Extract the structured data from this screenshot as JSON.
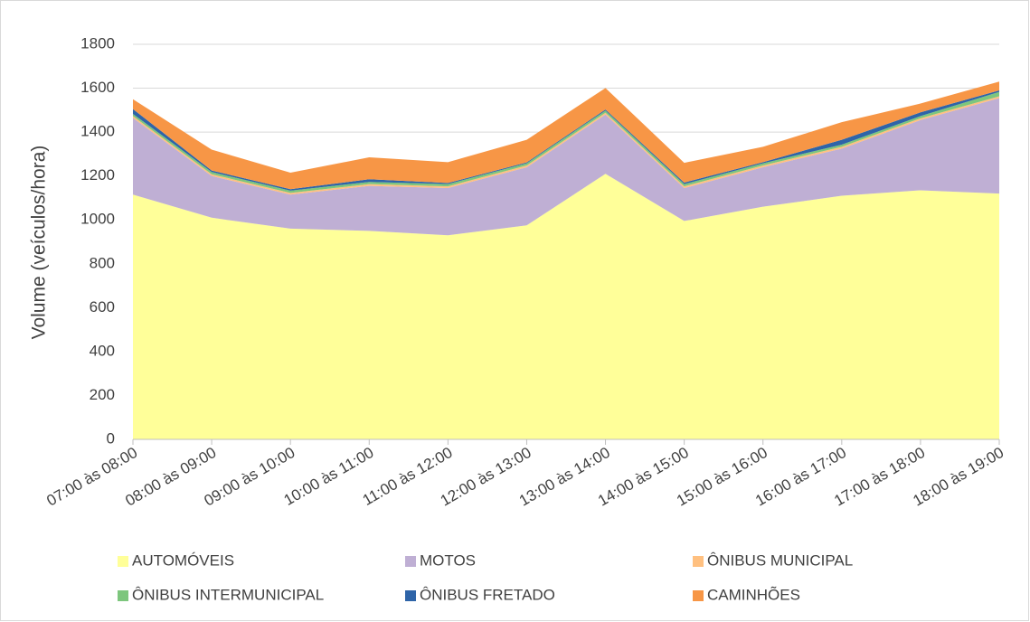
{
  "chart_data": {
    "type": "stacked_area",
    "ylabel": "Volume (veículos/hora)",
    "categories": [
      "07:00 às 08:00",
      "08:00 às 09:00",
      "09:00 às 10:00",
      "10:00 às 11:00",
      "11:00 às 12:00",
      "12:00 às 13:00",
      "13:00 às 14:00",
      "14:00 às 15:00",
      "15:00 às 16:00",
      "16:00 às 17:00",
      "17:00 às 18:00",
      "18:00 às 19:00"
    ],
    "series": [
      {
        "name": "AUTOMÓVEIS",
        "color": "#ffff99",
        "values": [
          1115,
          1010,
          960,
          950,
          930,
          975,
          1210,
          995,
          1060,
          1110,
          1135,
          1120
        ]
      },
      {
        "name": "MOTOS",
        "color": "#bfafd4",
        "values": [
          350,
          190,
          155,
          205,
          215,
          265,
          270,
          150,
          180,
          215,
          320,
          435
        ]
      },
      {
        "name": "ÔNIBUS MUNICIPAL",
        "color": "#ffc080",
        "values": [
          8,
          8,
          8,
          8,
          8,
          8,
          8,
          8,
          8,
          8,
          8,
          8
        ]
      },
      {
        "name": "ÔNIBUS INTERMUNICIPAL",
        "color": "#7dc67d",
        "values": [
          10,
          10,
          10,
          10,
          10,
          10,
          10,
          10,
          10,
          10,
          10,
          20
        ]
      },
      {
        "name": "ÔNIBUS FRETADO",
        "color": "#2e64a8",
        "values": [
          22,
          7,
          7,
          12,
          5,
          4,
          5,
          7,
          5,
          22,
          17,
          7
        ]
      },
      {
        "name": "CAMINHÕES",
        "color": "#f79646",
        "values": [
          45,
          95,
          75,
          100,
          95,
          103,
          98,
          90,
          70,
          80,
          40,
          40
        ]
      }
    ],
    "ylim": [
      0,
      1800
    ],
    "yticks": [
      0,
      200,
      400,
      600,
      800,
      1000,
      1200,
      1400,
      1600,
      1800
    ],
    "grid": true
  }
}
